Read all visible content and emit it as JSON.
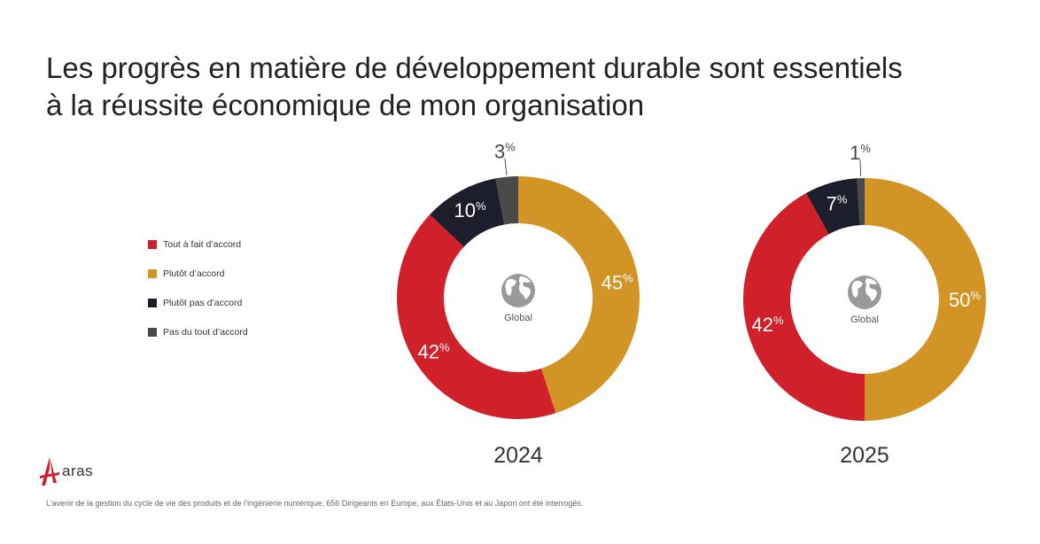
{
  "title": {
    "line1": "Les progrès en matière de développement durable sont essentiels",
    "line2": "à la réussite économique de mon organisation"
  },
  "legend": [
    {
      "label": "Tout à fait d’accord",
      "color": "#d0202a"
    },
    {
      "label": "Plutôt d’accord",
      "color": "#d39426"
    },
    {
      "label": "Plutôt pas d’accord",
      "color": "#1c1e2b"
    },
    {
      "label": "Pas du tout d’accord",
      "color": "#4a4a4a"
    }
  ],
  "chart_data": [
    {
      "type": "pie",
      "variant": "donut",
      "title": "2024",
      "center_label": "Global",
      "center_icon": "globe-icon",
      "series": [
        {
          "name": "Plutôt d’accord",
          "value": 45
        },
        {
          "name": "Tout à fait d’accord",
          "value": 42
        },
        {
          "name": "Plutôt pas d’accord",
          "value": 10
        },
        {
          "name": "Pas du tout d’accord",
          "value": 3
        }
      ]
    },
    {
      "type": "pie",
      "variant": "donut",
      "title": "2025",
      "center_label": "Global",
      "center_icon": "globe-icon",
      "series": [
        {
          "name": "Plutôt d’accord",
          "value": 50
        },
        {
          "name": "Tout à fait d’accord",
          "value": 42
        },
        {
          "name": "Plutôt pas d’accord",
          "value": 7
        },
        {
          "name": "Pas du tout d’accord",
          "value": 1
        }
      ]
    }
  ],
  "logo": {
    "text": "aras"
  },
  "footnote": "L’avenir de la gestion du cycle de vie des produits et de l’ingénierie numérique. 656 Dirigeants en Europe, aux États-Unis et au Japon ont été interrogés."
}
